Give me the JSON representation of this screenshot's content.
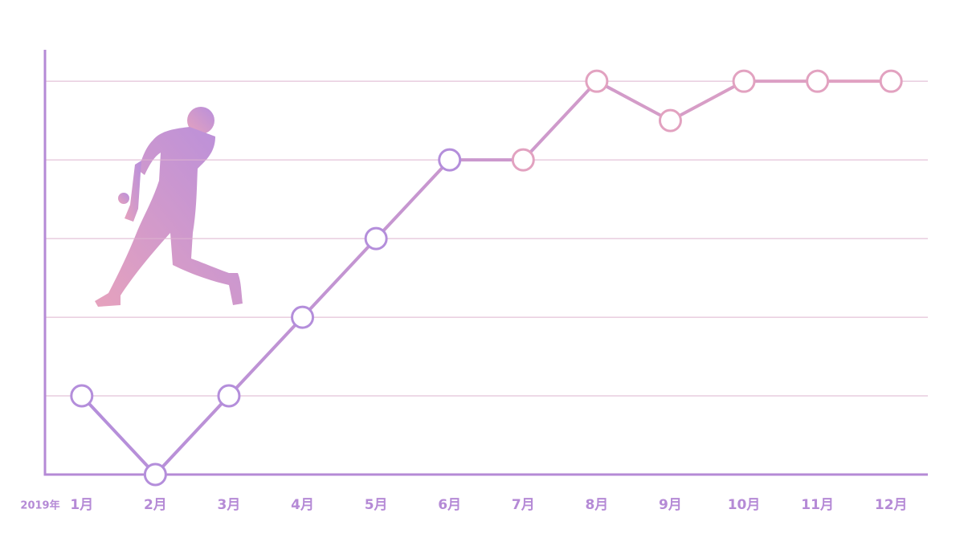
{
  "chart_data": {
    "type": "line",
    "year_label": "2019年",
    "categories": [
      "1月",
      "2月",
      "3月",
      "4月",
      "5月",
      "6月",
      "7月",
      "8月",
      "9月",
      "10月",
      "11月",
      "12月"
    ],
    "values": [
      1,
      0,
      1,
      2,
      3,
      4,
      4,
      5,
      4.5,
      5,
      5,
      5
    ],
    "line_gradient": [
      "#b48edb",
      "#e2a2c0"
    ],
    "axis_color": "#b58ad6",
    "grid_color": "#ddb3cf",
    "ylim": [
      0,
      5.4
    ],
    "yticks": [
      1,
      2,
      3,
      4,
      5
    ],
    "grid": true
  }
}
